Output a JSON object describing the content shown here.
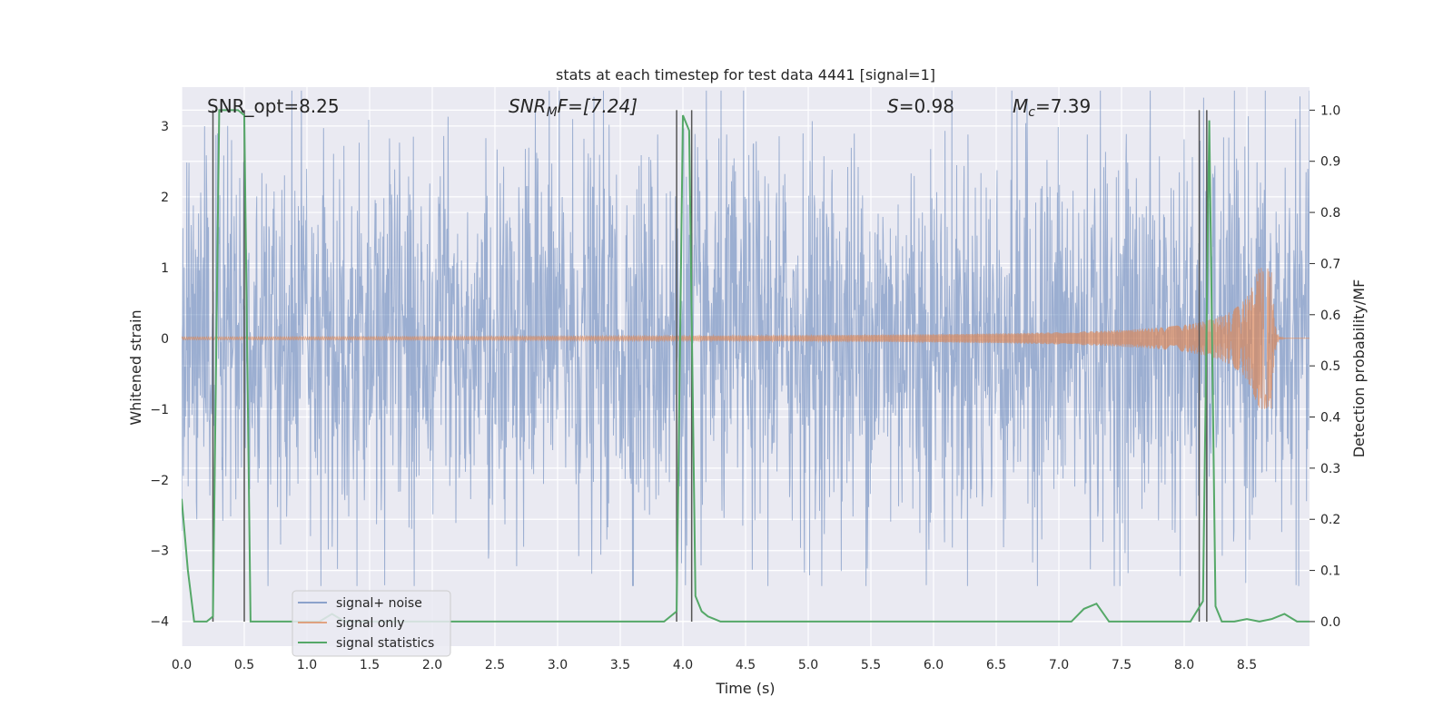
{
  "chart_data": {
    "type": "line",
    "title": "stats at each timestep for test data 4441 [signal=1]",
    "xlabel": "Time (s)",
    "ylabel": "Whitened strain",
    "y2label": "Detection probability/MF",
    "xlim": [
      0.0,
      9.0
    ],
    "ylim": [
      -4.35,
      3.55
    ],
    "y2lim": [
      -0.048,
      1.045
    ],
    "xticks": [
      "0.0",
      "0.5",
      "1.0",
      "1.5",
      "2.0",
      "2.5",
      "3.0",
      "3.5",
      "4.0",
      "4.5",
      "5.0",
      "5.5",
      "6.0",
      "6.5",
      "7.0",
      "7.5",
      "8.0",
      "8.5"
    ],
    "yticks": [
      "−4",
      "−3",
      "−2",
      "−1",
      "0",
      "1",
      "2",
      "3"
    ],
    "y2ticks": [
      "0.0",
      "0.1",
      "0.2",
      "0.3",
      "0.4",
      "0.5",
      "0.6",
      "0.7",
      "0.8",
      "0.9",
      "1.0"
    ],
    "annotations": {
      "snr_opt": "SNR_opt=8.25",
      "snr_mf_sym": "SNR",
      "snr_mf_sub": "M",
      "snr_mf_rest": "F=[7.24]",
      "s_sym": "S",
      "s_rest": "=0.98",
      "mc_sym": "M",
      "mc_sub": "c",
      "mc_rest": "=7.39"
    },
    "legend": {
      "location": "lower-left",
      "entries": [
        "signal+ noise",
        "signal only",
        "signal statistics"
      ]
    },
    "series": [
      {
        "name": "signal+ noise",
        "axis": "left",
        "color": "#4c72b0",
        "description": "whitened strain, noise amplitude about ±2 with peaks to about ±3.5",
        "envelope": {
          "typical": 1.9,
          "peak": 3.5
        }
      },
      {
        "name": "signal only",
        "axis": "left",
        "color": "#dd8452",
        "chirp": {
          "start_time": 0.0,
          "merger_time": 8.7,
          "end_time": 9.0,
          "peak_amplitude": 1.0,
          "early_amplitude": 0.02
        }
      },
      {
        "name": "signal statistics",
        "axis": "right",
        "color": "#55a868",
        "x": [
          0.0,
          0.05,
          0.1,
          0.2,
          0.25,
          0.3,
          0.45,
          0.5,
          0.55,
          1.1,
          1.2,
          1.3,
          3.85,
          3.95,
          4.0,
          4.05,
          4.1,
          4.15,
          4.2,
          4.25,
          4.3,
          4.4,
          7.1,
          7.2,
          7.3,
          7.4,
          8.05,
          8.15,
          8.2,
          8.25,
          8.3,
          8.4,
          8.5,
          8.6,
          8.7,
          8.8,
          8.9,
          9.0
        ],
        "y": [
          0.24,
          0.1,
          0.0,
          0.0,
          0.01,
          1.0,
          1.0,
          0.99,
          0.0,
          0.0,
          0.015,
          0.0,
          0.0,
          0.02,
          0.99,
          0.96,
          0.05,
          0.02,
          0.01,
          0.005,
          0.0,
          0.0,
          0.0,
          0.025,
          0.035,
          0.0,
          0.0,
          0.04,
          0.98,
          0.03,
          0.0,
          0.0,
          0.005,
          0.0,
          0.005,
          0.015,
          0.0,
          0.0
        ]
      }
    ],
    "vlines": [
      0.25,
      0.5,
      3.95,
      4.07,
      8.12,
      8.18
    ],
    "vline_range_y2": [
      0.0,
      1.0
    ]
  }
}
